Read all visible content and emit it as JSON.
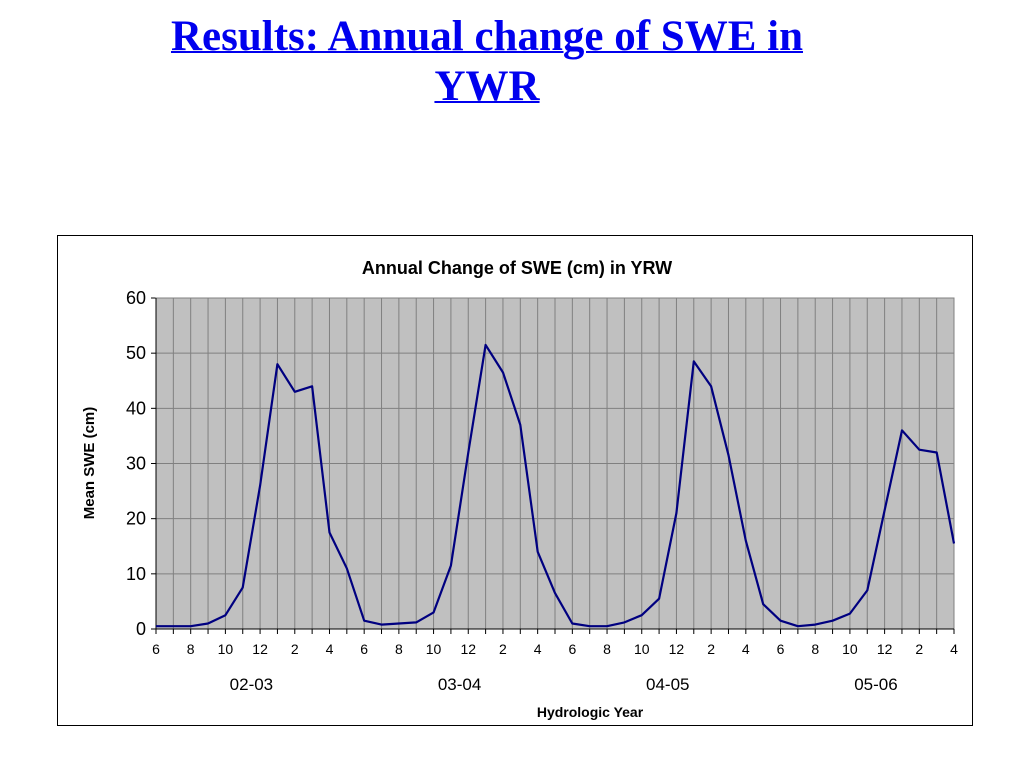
{
  "slide": {
    "title_line1": "Results: Annual change of SWE in",
    "title_line2": "YWR"
  },
  "colors": {
    "title": "#0000ee",
    "series": "#000080",
    "plot_background": "#c0c0c0",
    "gridlines": "#808080"
  },
  "chart_data": {
    "type": "line",
    "title": "Annual Change of SWE (cm) in YRW",
    "xlabel": "Hydrologic Year",
    "ylabel": "Mean SWE (cm)",
    "ylim": [
      0,
      60
    ],
    "y_ticks": [
      0,
      10,
      20,
      30,
      40,
      50,
      60
    ],
    "grid": true,
    "legend": "none",
    "x_month_ticks": [
      "6",
      "8",
      "10",
      "12",
      "2",
      "4",
      "6",
      "8",
      "10",
      "12",
      "2",
      "4",
      "6",
      "8",
      "10",
      "12",
      "2",
      "4",
      "6",
      "8",
      "10",
      "12",
      "2",
      "4"
    ],
    "year_groups": [
      "02-03",
      "03-04",
      "04-05",
      "05-06"
    ],
    "months": [
      6,
      7,
      8,
      9,
      10,
      11,
      12,
      1,
      2,
      3,
      4,
      5,
      6,
      7,
      8,
      9,
      10,
      11,
      12,
      1,
      2,
      3,
      4,
      5,
      6,
      7,
      8,
      9,
      10,
      11,
      12,
      1,
      2,
      3,
      4,
      5,
      6,
      7,
      8,
      9,
      10,
      11,
      12,
      1,
      2,
      3,
      4
    ],
    "series": [
      {
        "values": [
          0.5,
          0.5,
          0.5,
          1.0,
          2.5,
          7.5,
          26.0,
          48.0,
          43.0,
          44.0,
          17.5,
          11.0,
          1.5,
          0.8,
          1.0,
          1.2,
          3.0,
          11.5,
          32.0,
          51.5,
          46.5,
          37.0,
          14.0,
          6.5,
          1.0,
          0.5,
          0.5,
          1.2,
          2.5,
          5.5,
          21.0,
          48.5,
          44.0,
          31.5,
          16.0,
          4.5,
          1.5,
          0.5,
          0.8,
          1.5,
          2.8,
          7.0,
          21.5,
          36.0,
          32.5,
          32.0,
          15.5
        ]
      }
    ]
  }
}
